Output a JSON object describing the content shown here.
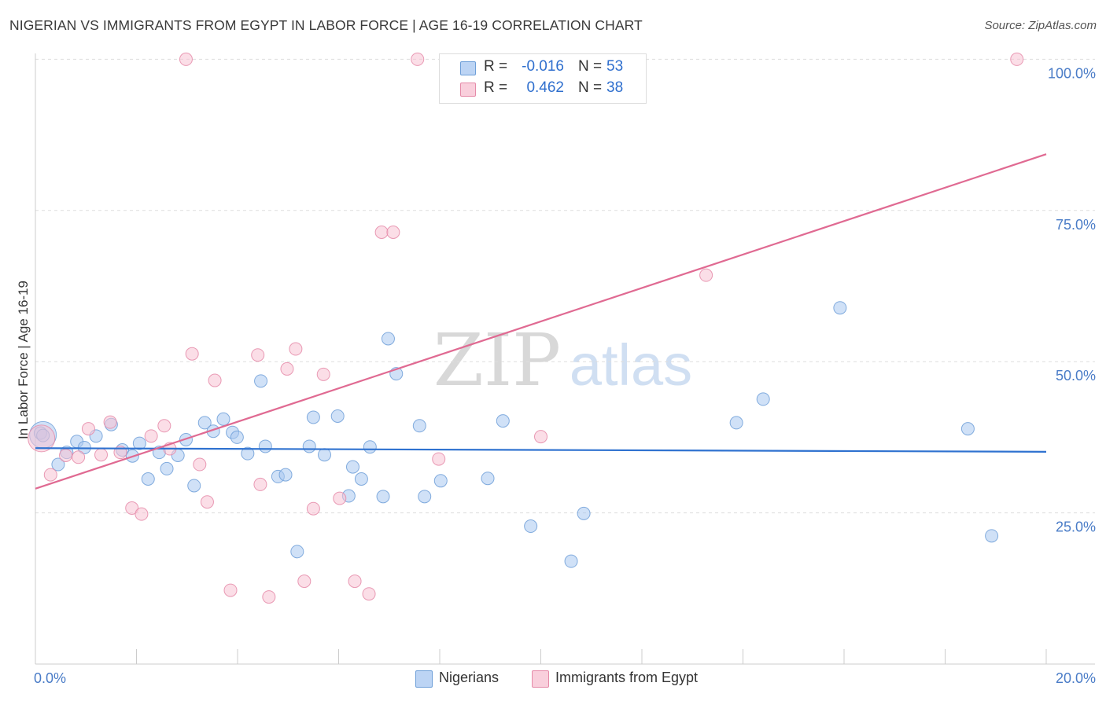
{
  "title": "NIGERIAN VS IMMIGRANTS FROM EGYPT IN LABOR FORCE | AGE 16-19 CORRELATION CHART",
  "source": "Source: ZipAtlas.com",
  "watermark": {
    "zip": "ZIP",
    "atlas": "atlas"
  },
  "colors": {
    "blue_fill": "#a9c8f0",
    "blue_stroke": "#6e9fd8",
    "blue_line": "#2f72d0",
    "pink_fill": "#f7c3d3",
    "pink_stroke": "#e58aa8",
    "pink_line": "#e06a92",
    "axis_label": "#4a7cc7",
    "grid": "#dddddd"
  },
  "stats": {
    "blue": {
      "r_label": "R =",
      "r_value": "-0.016",
      "n_label": "N =",
      "n_value": "53"
    },
    "pink": {
      "r_label": "R =",
      "r_value": "0.462",
      "n_label": "N =",
      "n_value": "38"
    }
  },
  "chart_data": {
    "type": "scatter",
    "title": "NIGERIAN VS IMMIGRANTS FROM EGYPT IN LABOR FORCE | AGE 16-19 CORRELATION CHART",
    "xlabel": "",
    "ylabel": "In Labor Force | Age 16-19",
    "xlim": [
      0,
      20
    ],
    "ylim": [
      0,
      102
    ],
    "x_tick_labels": {
      "left": "0.0%",
      "right": "20.0%"
    },
    "y_ticks": [
      {
        "value": 25,
        "label": "25.0%"
      },
      {
        "value": 50,
        "label": "50.0%"
      },
      {
        "value": 75,
        "label": "75.0%"
      },
      {
        "value": 100,
        "label": "100.0%"
      }
    ],
    "legend": [
      "Nigerians",
      "Immigrants from Egypt"
    ],
    "series": [
      {
        "name": "Nigerians",
        "color": "blue",
        "trend": {
          "x0": 0,
          "y0": 35.7,
          "x1": 20,
          "y1": 35.1
        },
        "points": [
          [
            0.1,
            38.2
          ],
          [
            0.15,
            37.8
          ],
          [
            0.45,
            33.0
          ],
          [
            0.62,
            35.0
          ],
          [
            0.82,
            36.8
          ],
          [
            0.97,
            35.8
          ],
          [
            1.2,
            37.7
          ],
          [
            1.5,
            39.6
          ],
          [
            1.72,
            35.4
          ],
          [
            1.92,
            34.4
          ],
          [
            2.06,
            36.5
          ],
          [
            2.23,
            30.6
          ],
          [
            2.45,
            35.0
          ],
          [
            2.6,
            32.3
          ],
          [
            2.82,
            34.5
          ],
          [
            2.98,
            37.1
          ],
          [
            3.14,
            29.5
          ],
          [
            3.35,
            39.9
          ],
          [
            3.52,
            38.5
          ],
          [
            3.72,
            40.5
          ],
          [
            3.9,
            38.3
          ],
          [
            3.99,
            37.5
          ],
          [
            4.2,
            34.8
          ],
          [
            4.46,
            46.8
          ],
          [
            4.55,
            36.0
          ],
          [
            4.8,
            31.0
          ],
          [
            4.95,
            31.3
          ],
          [
            5.18,
            18.6
          ],
          [
            5.42,
            36.0
          ],
          [
            5.5,
            40.8
          ],
          [
            5.72,
            34.6
          ],
          [
            5.98,
            41.0
          ],
          [
            6.2,
            27.8
          ],
          [
            6.28,
            32.6
          ],
          [
            6.45,
            30.6
          ],
          [
            6.62,
            35.9
          ],
          [
            6.88,
            27.7
          ],
          [
            6.98,
            53.8
          ],
          [
            7.14,
            48.0
          ],
          [
            7.6,
            39.4
          ],
          [
            7.7,
            27.7
          ],
          [
            8.02,
            30.3
          ],
          [
            8.95,
            30.7
          ],
          [
            9.25,
            40.2
          ],
          [
            9.8,
            22.8
          ],
          [
            10.6,
            17.0
          ],
          [
            10.85,
            24.9
          ],
          [
            13.87,
            39.9
          ],
          [
            14.4,
            43.8
          ],
          [
            15.92,
            58.9
          ],
          [
            18.45,
            38.9
          ],
          [
            18.92,
            21.2
          ]
        ],
        "large_points": [
          [
            0.15,
            37.9
          ]
        ]
      },
      {
        "name": "Immigrants from Egypt",
        "color": "pink",
        "trend": {
          "x0": 0,
          "y0": 29.0,
          "x1": 20,
          "y1": 84.3
        },
        "points": [
          [
            0.3,
            31.3
          ],
          [
            0.6,
            34.5
          ],
          [
            0.85,
            34.2
          ],
          [
            1.05,
            38.9
          ],
          [
            1.3,
            34.6
          ],
          [
            1.48,
            40.0
          ],
          [
            1.68,
            35.0
          ],
          [
            1.91,
            25.8
          ],
          [
            2.1,
            24.8
          ],
          [
            2.29,
            37.7
          ],
          [
            2.55,
            39.4
          ],
          [
            2.66,
            35.6
          ],
          [
            2.98,
            100.0
          ],
          [
            3.1,
            51.3
          ],
          [
            3.25,
            33.0
          ],
          [
            3.4,
            26.8
          ],
          [
            3.55,
            46.9
          ],
          [
            3.86,
            12.2
          ],
          [
            4.4,
            51.1
          ],
          [
            4.45,
            29.7
          ],
          [
            4.62,
            11.1
          ],
          [
            4.98,
            48.8
          ],
          [
            5.15,
            52.1
          ],
          [
            5.32,
            13.7
          ],
          [
            5.5,
            25.7
          ],
          [
            5.7,
            47.9
          ],
          [
            6.02,
            27.4
          ],
          [
            6.32,
            13.7
          ],
          [
            6.6,
            11.6
          ],
          [
            6.85,
            71.4
          ],
          [
            7.08,
            71.4
          ],
          [
            7.56,
            100.0
          ],
          [
            7.98,
            33.9
          ],
          [
            10.0,
            37.6
          ],
          [
            13.27,
            64.3
          ],
          [
            19.42,
            100.0
          ]
        ],
        "large_points": [
          [
            0.12,
            37.3
          ]
        ]
      }
    ]
  }
}
